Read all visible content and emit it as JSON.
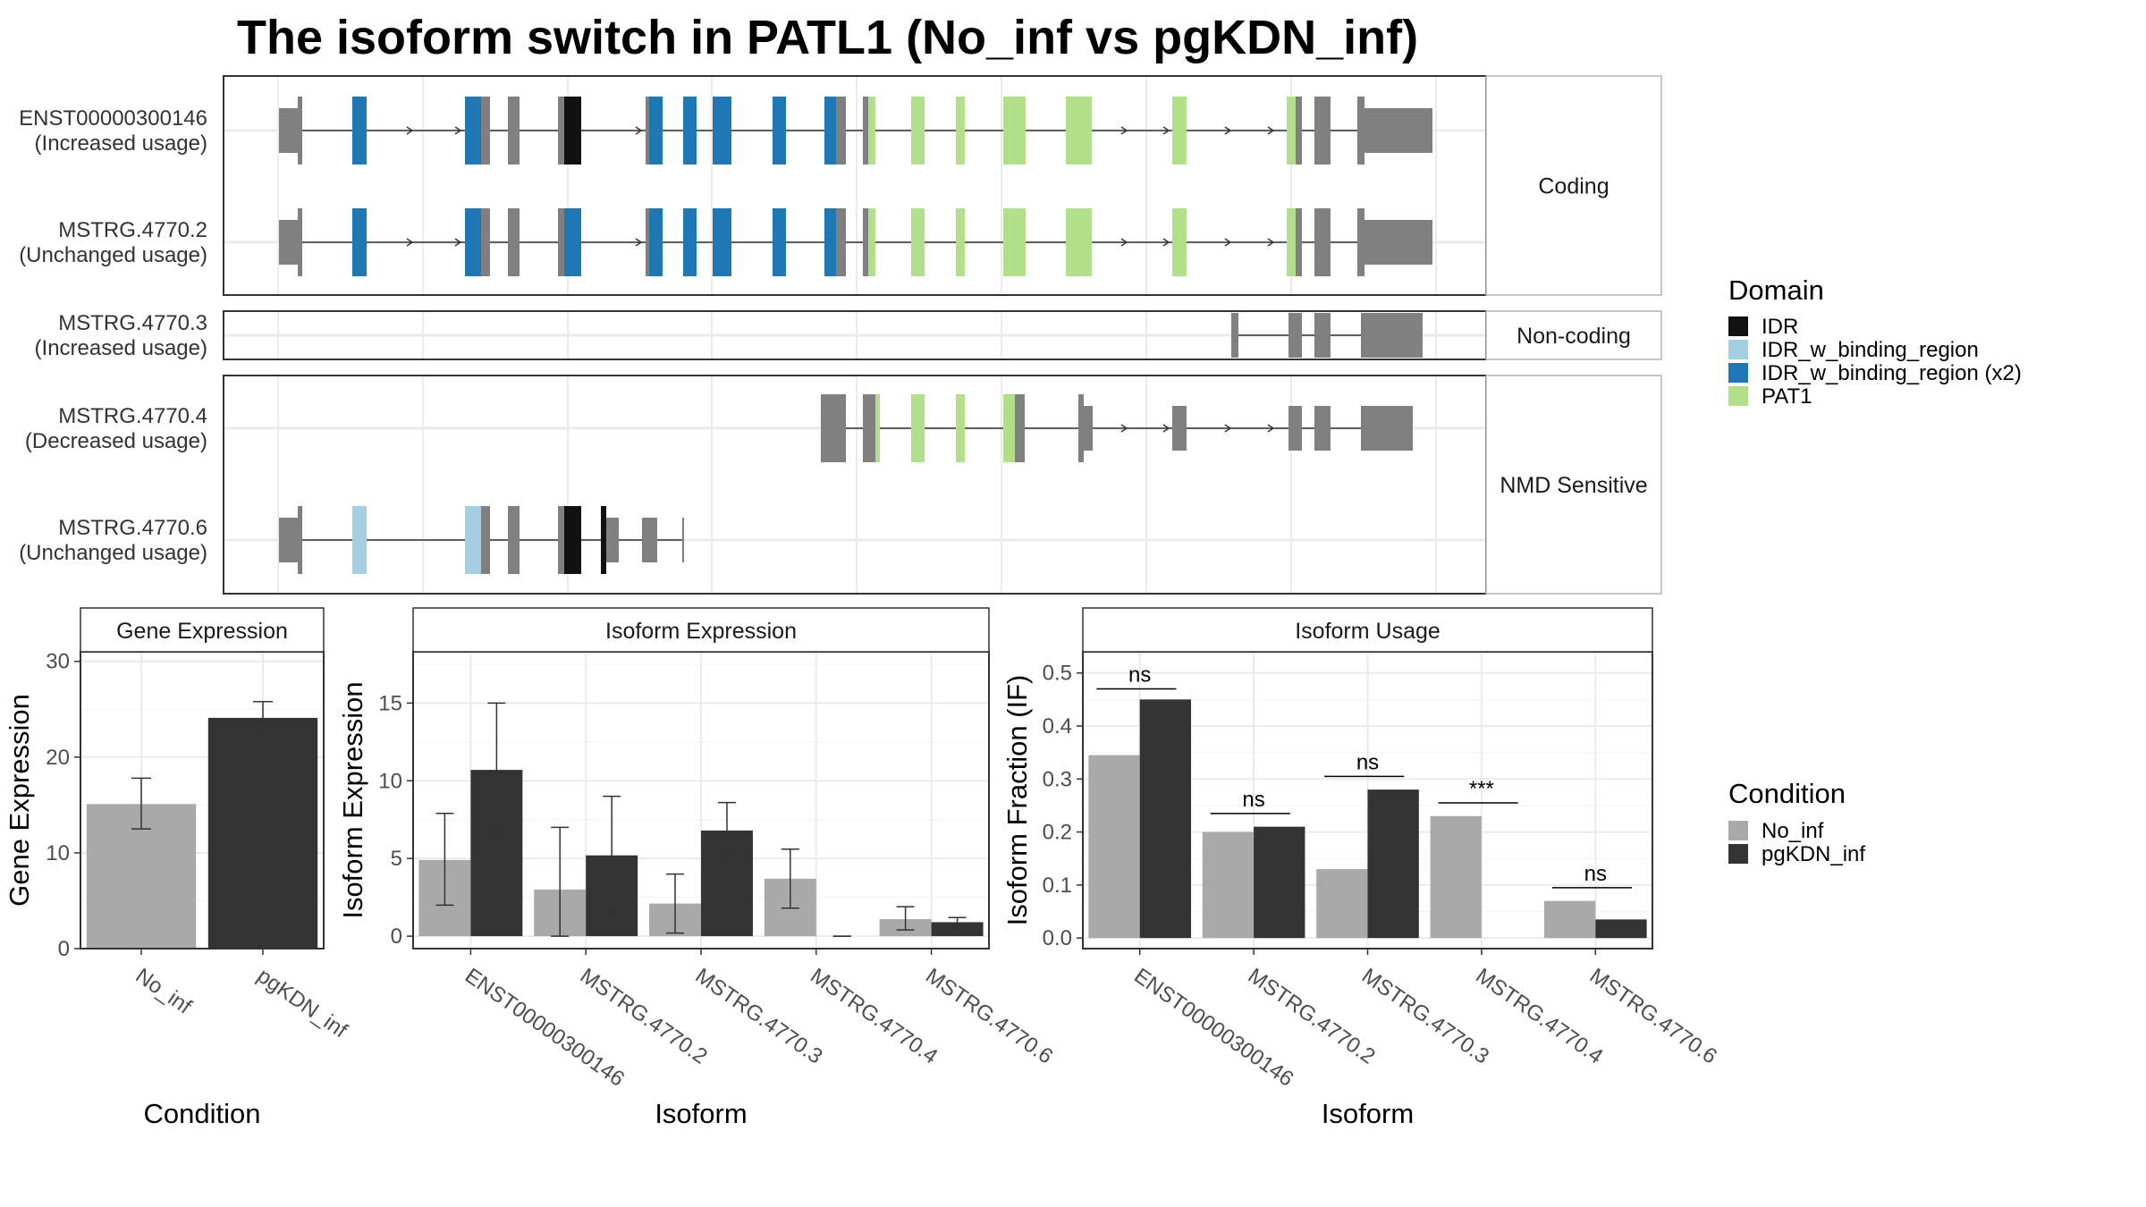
{
  "title": "The isoform switch in PATL1 (No_inf vs pgKDN_inf)",
  "colors": {
    "exon": "#808080",
    "IDR": "#111111",
    "IDR_w_binding_region": "#a6cee3",
    "IDR_w_binding_region (x2)": "#1f78b4",
    "PAT1": "#b2df8a",
    "No_inf": "#a9a9a9",
    "pgKDN_inf": "#333333"
  },
  "transcript_panels": [
    {
      "label": "Coding",
      "transcripts": [
        {
          "name": "ENST00000300146",
          "status": "(Increased usage)"
        },
        {
          "name": "MSTRG.4770.2",
          "status": "(Unchanged usage)"
        }
      ]
    },
    {
      "label": "Non-coding",
      "transcripts": [
        {
          "name": "MSTRG.4770.3",
          "status": "(Increased usage)"
        }
      ]
    },
    {
      "label": "NMD Sensitive",
      "transcripts": [
        {
          "name": "MSTRG.4770.4",
          "status": "(Decreased usage)"
        },
        {
          "name": "MSTRG.4770.6",
          "status": "(Unchanged usage)"
        }
      ]
    }
  ],
  "domain_legend": {
    "title": "Domain",
    "items": [
      "IDR",
      "IDR_w_binding_region",
      "IDR_w_binding_region (x2)",
      "PAT1"
    ]
  },
  "condition_legend": {
    "title": "Condition",
    "items": [
      "No_inf",
      "pgKDN_inf"
    ]
  },
  "chart_data": [
    {
      "type": "bar",
      "title": "Gene Expression",
      "xlabel": "Condition",
      "ylabel": "Gene Expression",
      "categories": [
        "No_inf",
        "pgKDN_inf"
      ],
      "values": [
        15.1,
        24.1
      ],
      "errors": [
        [
          12.5,
          17.8
        ],
        [
          22.4,
          25.8
        ]
      ],
      "ylim": [
        0,
        31
      ],
      "yticks": [
        0,
        10,
        20,
        30
      ]
    },
    {
      "type": "bar",
      "title": "Isoform Expression",
      "xlabel": "Isoform",
      "ylabel": "Isoform Expression",
      "categories": [
        "ENST00000300146",
        "MSTRG.4770.2",
        "MSTRG.4770.3",
        "MSTRG.4770.4",
        "MSTRG.4770.6"
      ],
      "series": [
        {
          "name": "No_inf",
          "values": [
            4.9,
            3.0,
            2.1,
            3.7,
            1.1
          ],
          "errors": [
            [
              2.0,
              7.9
            ],
            [
              0.0,
              7.0
            ],
            [
              0.2,
              4.0
            ],
            [
              1.8,
              5.6
            ],
            [
              0.4,
              1.9
            ]
          ]
        },
        {
          "name": "pgKDN_inf",
          "values": [
            10.7,
            5.2,
            6.8,
            0.0,
            0.9
          ],
          "errors": [
            [
              6.4,
              15.0
            ],
            [
              1.3,
              9.0
            ],
            [
              5.0,
              8.6
            ],
            [
              0.0,
              0.0
            ],
            [
              0.6,
              1.2
            ]
          ]
        }
      ],
      "ylim": [
        -0.8,
        18.3
      ],
      "yticks": [
        0,
        5,
        10,
        15
      ]
    },
    {
      "type": "bar",
      "title": "Isoform Usage",
      "xlabel": "Isoform",
      "ylabel": "Isoform Fraction (IF)",
      "categories": [
        "ENST00000300146",
        "MSTRG.4770.2",
        "MSTRG.4770.3",
        "MSTRG.4770.4",
        "MSTRG.4770.6"
      ],
      "series": [
        {
          "name": "No_inf",
          "values": [
            0.345,
            0.2,
            0.13,
            0.23,
            0.07
          ]
        },
        {
          "name": "pgKDN_inf",
          "values": [
            0.45,
            0.21,
            0.28,
            0.0,
            0.035
          ]
        }
      ],
      "significance": [
        "ns",
        "ns",
        "ns",
        "***",
        "ns"
      ],
      "significance_levels": [
        0.47,
        0.235,
        0.305,
        0.255,
        0.095
      ],
      "ylim": [
        -0.02,
        0.54
      ],
      "yticks": [
        0.0,
        0.1,
        0.2,
        0.3,
        0.4,
        0.5
      ]
    }
  ]
}
